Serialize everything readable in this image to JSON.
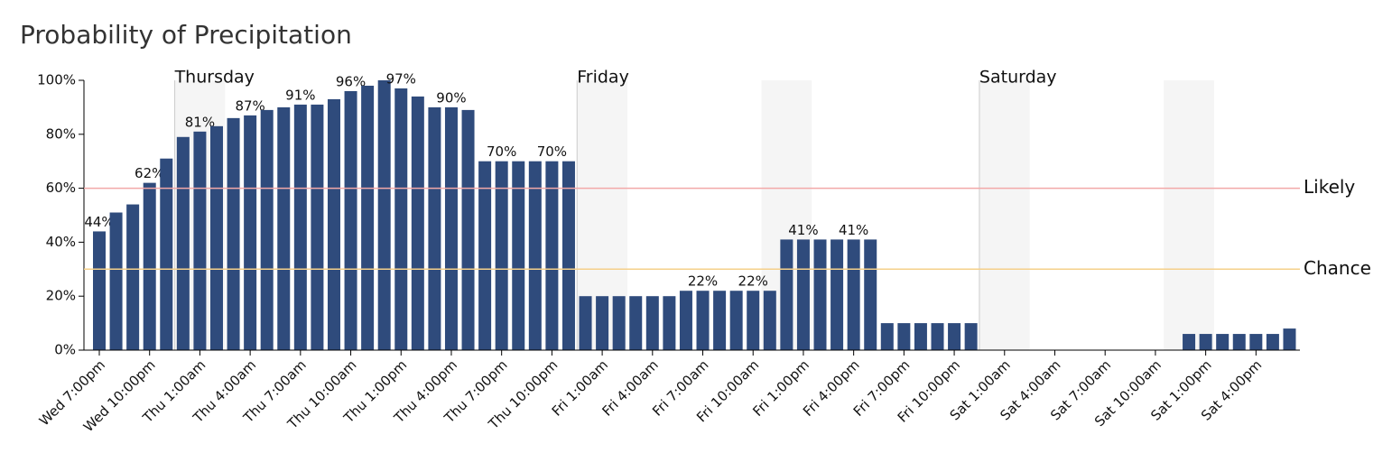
{
  "chart_data": {
    "type": "bar",
    "title": "Probability of Precipitation",
    "color": "#2f4b7c",
    "categories": [
      "Wed 7:00pm",
      null,
      null,
      "Wed 10:00pm",
      null,
      null,
      "Thu 1:00am",
      null,
      null,
      "Thu 4:00am",
      null,
      null,
      "Thu 7:00am",
      null,
      null,
      "Thu 10:00am",
      null,
      null,
      "Thu 1:00pm",
      null,
      null,
      "Thu 4:00pm",
      null,
      null,
      "Thu 7:00pm",
      null,
      null,
      "Thu 10:00pm",
      null,
      null,
      "Fri 1:00am",
      null,
      null,
      "Fri 4:00am",
      null,
      null,
      "Fri 7:00am",
      null,
      null,
      "Fri 10:00am",
      null,
      null,
      "Fri 1:00pm",
      null,
      null,
      "Fri 4:00pm",
      null,
      null,
      "Fri 7:00pm",
      null,
      null,
      "Fri 10:00pm",
      null,
      null,
      "Sat 1:00am",
      null,
      null,
      "Sat 4:00am",
      null,
      null,
      "Sat 7:00am",
      null,
      null,
      "Sat 10:00am",
      null,
      null,
      "Sat 1:00pm",
      null,
      null,
      "Sat 4:00pm",
      null,
      null
    ],
    "values": [
      44,
      51,
      54,
      62,
      71,
      79,
      81,
      83,
      86,
      87,
      89,
      90,
      91,
      91,
      93,
      96,
      98,
      100,
      97,
      94,
      90,
      90,
      89,
      70,
      70,
      70,
      70,
      70,
      70,
      20,
      20,
      20,
      20,
      20,
      20,
      22,
      22,
      22,
      22,
      22,
      22,
      41,
      41,
      41,
      41,
      41,
      41,
      10,
      10,
      10,
      10,
      10,
      10,
      0,
      0,
      0,
      0,
      0,
      0,
      0,
      0,
      0,
      0,
      0,
      0,
      6,
      6,
      6,
      6,
      6,
      6,
      8
    ],
    "value_labels": [
      "44%",
      null,
      null,
      "62%",
      null,
      null,
      "81%",
      null,
      null,
      "87%",
      null,
      null,
      "91%",
      null,
      null,
      "96%",
      null,
      null,
      "97%",
      null,
      null,
      "90%",
      null,
      null,
      "70%",
      null,
      null,
      "70%",
      null,
      null,
      null,
      null,
      null,
      null,
      null,
      null,
      "22%",
      null,
      null,
      "22%",
      null,
      null,
      "41%",
      null,
      null,
      "41%",
      null,
      null,
      null,
      null,
      null,
      null,
      null,
      null,
      null,
      null,
      null,
      null,
      null,
      null,
      null,
      null,
      null,
      null,
      null,
      null,
      null,
      null,
      null,
      null,
      null,
      null
    ],
    "ylim": [
      0,
      100
    ],
    "yticks": [
      {
        "value": 0,
        "label": "0%"
      },
      {
        "value": 20,
        "label": "20%"
      },
      {
        "value": 40,
        "label": "40%"
      },
      {
        "value": 60,
        "label": "60%"
      },
      {
        "value": 80,
        "label": "80%"
      },
      {
        "value": 100,
        "label": "100%"
      }
    ],
    "day_labels": [
      "Thursday",
      "Friday",
      "Saturday"
    ],
    "reference_lines": [
      {
        "label": "Likely",
        "value": 60,
        "color": "#f2a9a9"
      },
      {
        "label": "Chance",
        "value": 30,
        "color": "#f5d08a"
      }
    ]
  }
}
